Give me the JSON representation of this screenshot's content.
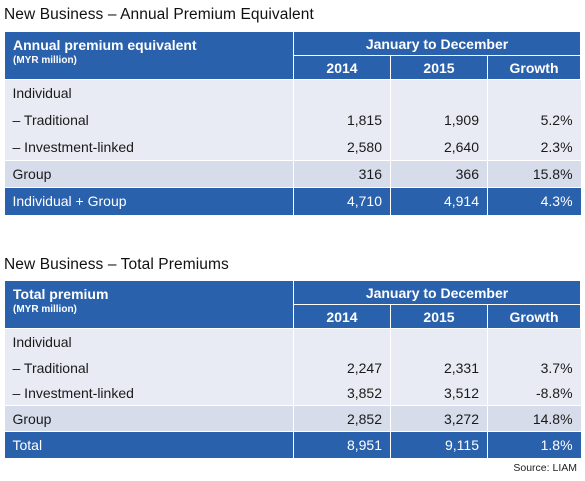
{
  "tables": [
    {
      "title": "New Business – Annual Premium Equivalent",
      "label": "Annual premium equivalent",
      "unit": "(MYR million)",
      "period": "January to December",
      "columns": [
        "2014",
        "2015",
        "Growth"
      ],
      "rows": [
        {
          "name": "Individual",
          "values": [
            "",
            "",
            ""
          ]
        },
        {
          "name": "– Traditional",
          "values": [
            "1,815",
            "1,909",
            "5.2%"
          ]
        },
        {
          "name": "– Investment-linked",
          "values": [
            "2,580",
            "2,640",
            "2.3%"
          ]
        },
        {
          "name": "Group",
          "values": [
            "316",
            "366",
            "15.8%"
          ]
        },
        {
          "name": "Individual + Group",
          "values": [
            "4,710",
            "4,914",
            "4.3%"
          ]
        }
      ]
    },
    {
      "title": "New Business – Total Premiums",
      "label": "Total premium",
      "unit": "(MYR million)",
      "period": "January to December",
      "columns": [
        "2014",
        "2015",
        "Growth"
      ],
      "rows": [
        {
          "name": "Individual",
          "values": [
            "",
            "",
            ""
          ]
        },
        {
          "name": "– Traditional",
          "values": [
            "2,247",
            "2,331",
            "3.7%"
          ]
        },
        {
          "name": "– Investment-linked",
          "values": [
            "3,852",
            "3,512",
            "-8.8%"
          ]
        },
        {
          "name": "Group",
          "values": [
            "2,852",
            "3,272",
            "14.8%"
          ]
        },
        {
          "name": "Total",
          "values": [
            "8,951",
            "9,115",
            "1.8%"
          ]
        }
      ]
    }
  ],
  "source": "Source: LIAM"
}
